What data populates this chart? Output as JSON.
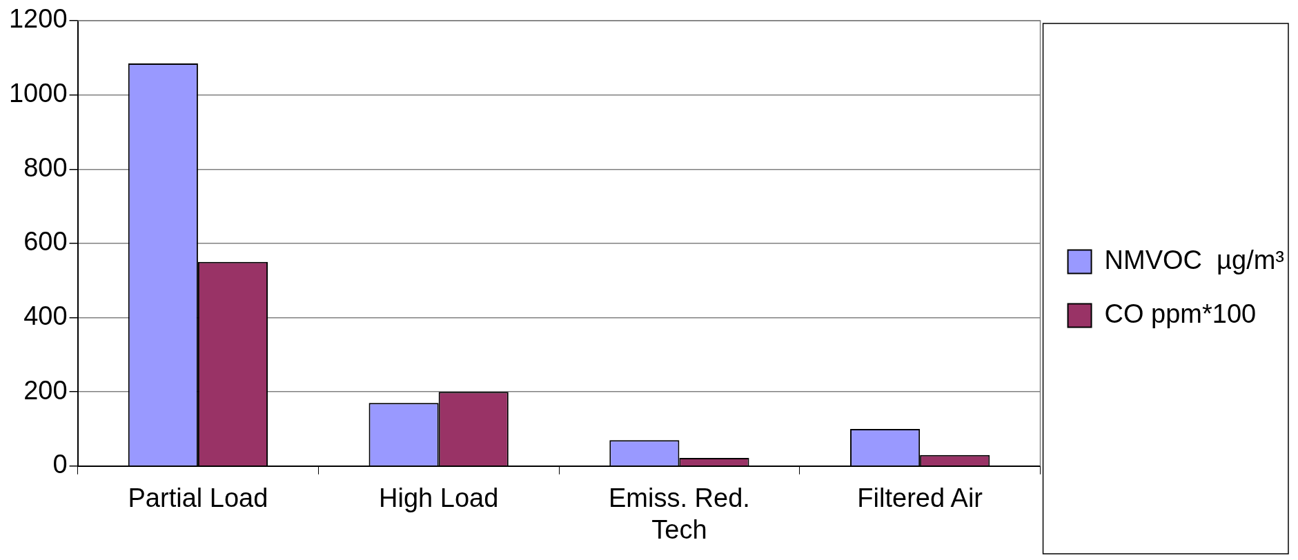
{
  "chart_data": {
    "type": "bar",
    "categories": [
      "Partial Load",
      "High Load",
      "Emiss. Red. Tech",
      "Filtered Air"
    ],
    "series": [
      {
        "name": "NMVOC  µg/m³",
        "color": "#9999ff",
        "values": [
          1085,
          170,
          70,
          100
        ]
      },
      {
        "name": "CO ppm*100",
        "color": "#993366",
        "values": [
          550,
          200,
          22,
          30
        ]
      }
    ],
    "ylim": [
      0,
      1200
    ],
    "yticks": [
      0,
      200,
      400,
      600,
      800,
      1000,
      1200
    ],
    "grid": "y",
    "legend": "right"
  }
}
